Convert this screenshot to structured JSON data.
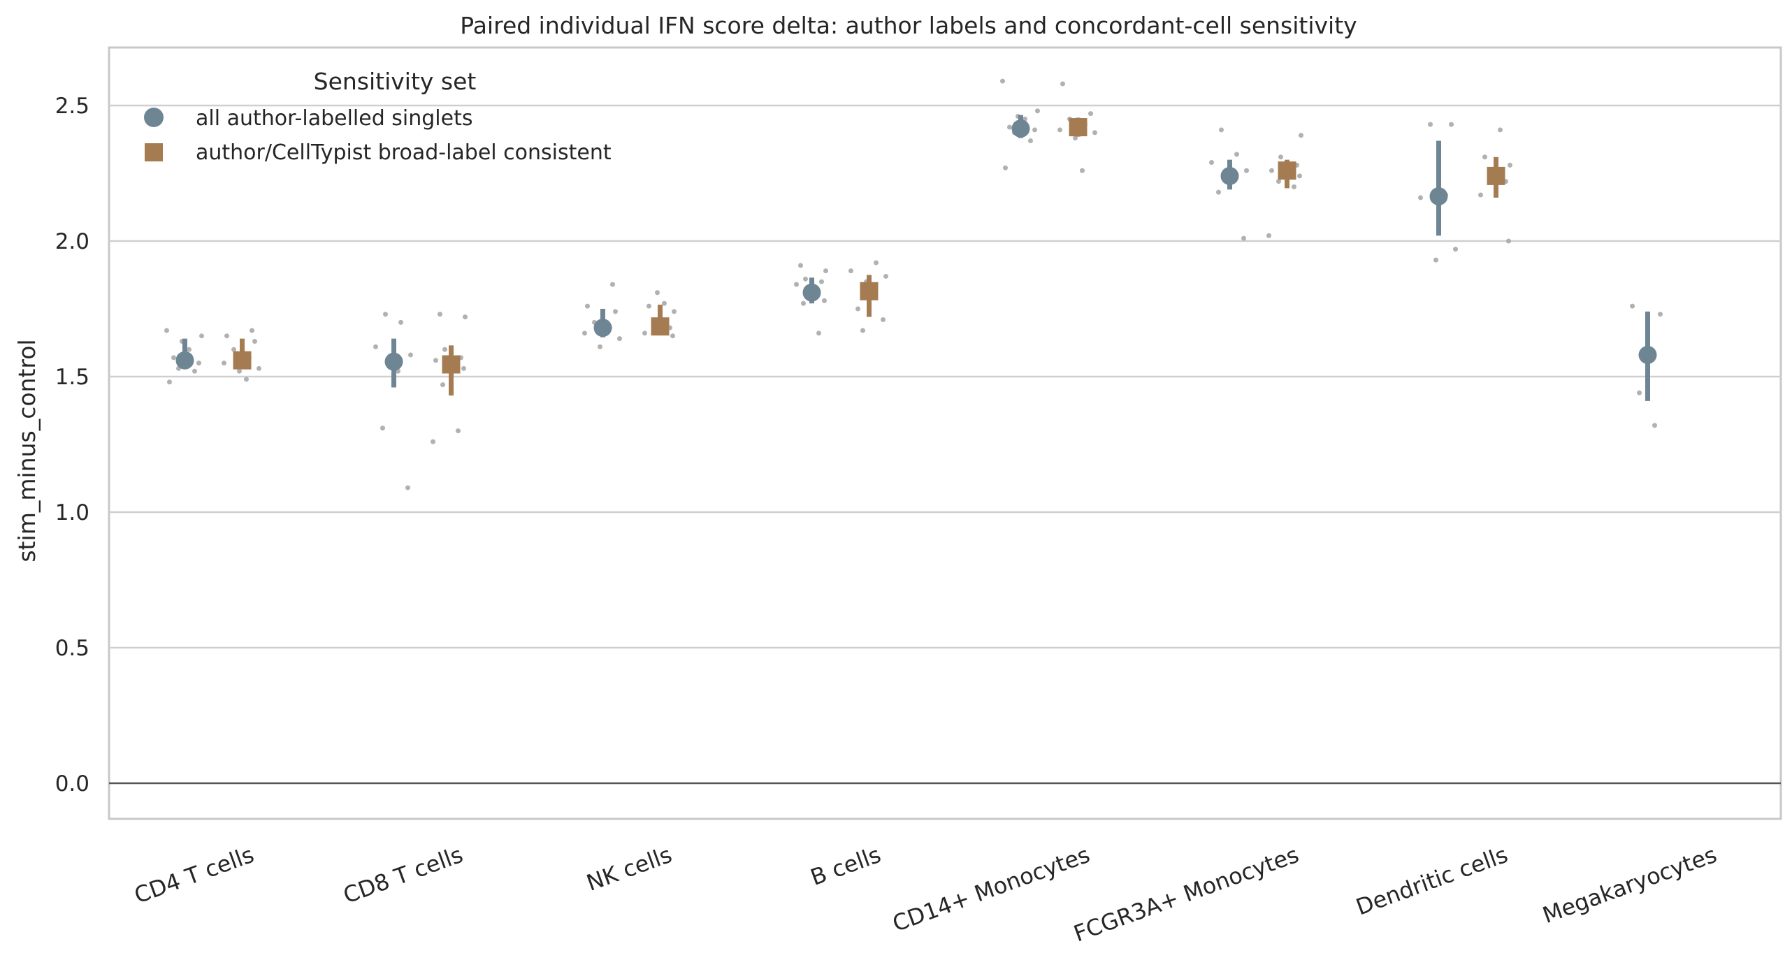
{
  "chart_data": {
    "type": "scatter",
    "title": "Paired individual IFN score delta: author labels and concordant-cell sensitivity",
    "xlabel": "",
    "ylabel": "stim_minus_control",
    "ylim": [
      -0.12,
      2.72
    ],
    "yticks": [
      "0.0",
      "0.5",
      "1.0",
      "1.5",
      "2.0",
      "2.5"
    ],
    "grid": true,
    "reference_line": 0.0,
    "categories": [
      "CD4 T cells",
      "CD8 T cells",
      "NK cells",
      "B cells",
      "CD14+ Monocytes",
      "FCGR3A+ Monocytes",
      "Dendritic cells",
      "Megakaryocytes"
    ],
    "legend": {
      "title": "Sensitivity set",
      "placement": "top-left"
    },
    "colors": {
      "all": "#6e8593",
      "consistent": "#a57c52",
      "points": "#a8a8a8",
      "grid": "#cfcfcf",
      "zero_line": "#555555"
    },
    "series": [
      {
        "name": "all author-labelled singlets",
        "marker": "circle",
        "means": [
          1.56,
          1.555,
          1.68,
          1.81,
          2.415,
          2.24,
          2.165,
          1.58
        ],
        "ci_low": [
          1.53,
          1.46,
          1.645,
          1.77,
          2.38,
          2.19,
          2.02,
          1.41
        ],
        "ci_high": [
          1.64,
          1.64,
          1.75,
          1.865,
          2.465,
          2.3,
          2.37,
          1.74
        ],
        "points": [
          [
            1.48,
            1.52,
            1.53,
            1.55,
            1.57,
            1.6,
            1.63,
            1.65,
            1.67
          ],
          [
            1.09,
            1.31,
            1.52,
            1.56,
            1.58,
            1.61,
            1.7,
            1.73
          ],
          [
            1.61,
            1.64,
            1.66,
            1.68,
            1.7,
            1.74,
            1.76,
            1.84
          ],
          [
            1.66,
            1.77,
            1.78,
            1.84,
            1.85,
            1.86,
            1.89,
            1.91
          ],
          [
            2.27,
            2.37,
            2.4,
            2.41,
            2.42,
            2.45,
            2.46,
            2.48,
            2.59
          ],
          [
            2.01,
            2.18,
            2.23,
            2.25,
            2.26,
            2.29,
            2.32,
            2.41
          ],
          [
            1.93,
            1.97,
            2.16,
            2.17,
            2.43,
            2.43
          ],
          [
            1.32,
            1.44,
            1.73,
            1.76
          ]
        ]
      },
      {
        "name": "author/CellTypist broad-label consistent",
        "marker": "square",
        "means": [
          1.56,
          1.545,
          1.685,
          1.815,
          2.42,
          2.26,
          2.24,
          null
        ],
        "ci_low": [
          1.53,
          1.43,
          1.655,
          1.72,
          2.385,
          2.195,
          2.16,
          null
        ],
        "ci_high": [
          1.64,
          1.615,
          1.765,
          1.875,
          2.455,
          2.3,
          2.31,
          null
        ],
        "points": [
          [
            1.49,
            1.52,
            1.53,
            1.55,
            1.57,
            1.6,
            1.63,
            1.65,
            1.67
          ],
          [
            1.26,
            1.3,
            1.47,
            1.53,
            1.56,
            1.57,
            1.6,
            1.72,
            1.73
          ],
          [
            1.65,
            1.66,
            1.68,
            1.7,
            1.74,
            1.76,
            1.77,
            1.81
          ],
          [
            1.67,
            1.71,
            1.75,
            1.82,
            1.85,
            1.87,
            1.89,
            1.92
          ],
          [
            2.26,
            2.38,
            2.4,
            2.41,
            2.43,
            2.45,
            2.47,
            2.58
          ],
          [
            2.02,
            2.2,
            2.22,
            2.24,
            2.26,
            2.28,
            2.31,
            2.39
          ],
          [
            2.0,
            2.17,
            2.22,
            2.25,
            2.28,
            2.31,
            2.41
          ],
          []
        ]
      }
    ]
  }
}
